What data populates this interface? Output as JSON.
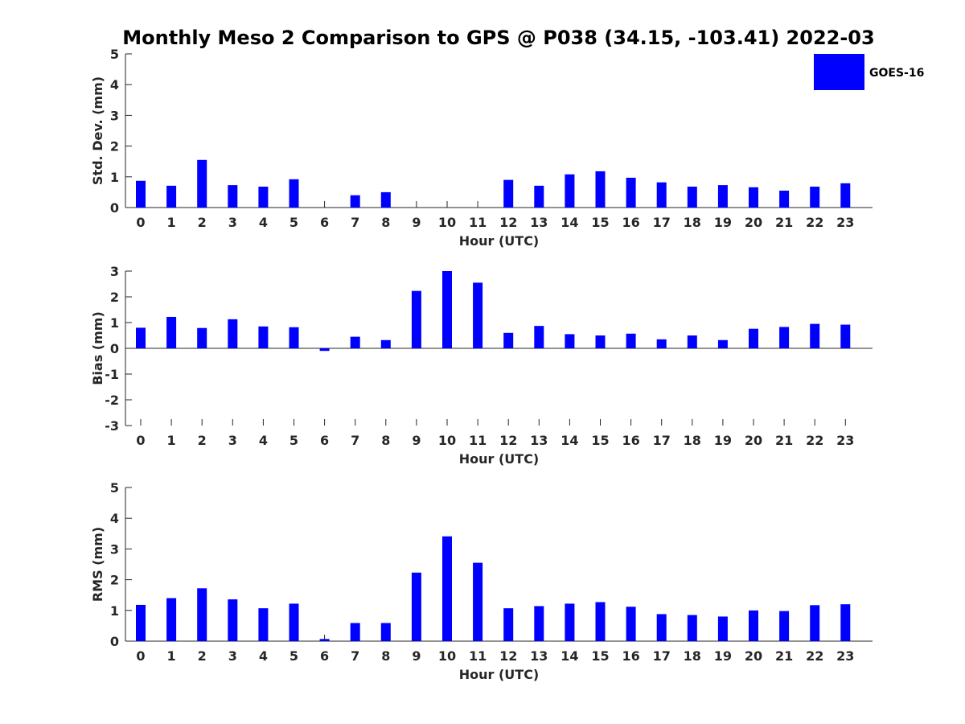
{
  "chart_data": {
    "title": "Monthly Meso 2 Comparison to GPS @ P038 (34.15, -103.41) 2022-03",
    "legend": {
      "label": "GOES-16",
      "color": "#0000ff",
      "placement": "top-right"
    },
    "bar_color": "#0000ff",
    "panels": [
      {
        "type": "bar",
        "xlabel": "Hour (UTC)",
        "ylabel": "Std. Dev. (mm)",
        "ylim": [
          0,
          5
        ],
        "yticks": [
          0,
          1,
          2,
          3,
          4,
          5
        ],
        "categories": [
          "0",
          "1",
          "2",
          "3",
          "4",
          "5",
          "6",
          "7",
          "8",
          "9",
          "10",
          "11",
          "12",
          "13",
          "14",
          "15",
          "16",
          "17",
          "18",
          "19",
          "20",
          "21",
          "22",
          "23"
        ],
        "series": [
          {
            "name": "GOES-16",
            "values": [
              0.87,
              0.71,
              1.55,
              0.73,
              0.68,
              0.92,
              null,
              0.4,
              0.5,
              null,
              null,
              null,
              0.9,
              0.71,
              1.08,
              1.18,
              0.97,
              0.82,
              0.68,
              0.73,
              0.66,
              0.55,
              0.68,
              0.79
            ]
          }
        ]
      },
      {
        "type": "bar",
        "xlabel": "Hour (UTC)",
        "ylabel": "Bias (mm)",
        "ylim": [
          -3,
          3
        ],
        "yticks": [
          -3,
          -2,
          -1,
          0,
          1,
          2,
          3
        ],
        "categories": [
          "0",
          "1",
          "2",
          "3",
          "4",
          "5",
          "6",
          "7",
          "8",
          "9",
          "10",
          "11",
          "12",
          "13",
          "14",
          "15",
          "16",
          "17",
          "18",
          "19",
          "20",
          "21",
          "22",
          "23"
        ],
        "series": [
          {
            "name": "GOES-16",
            "values": [
              0.8,
              1.22,
              0.79,
              1.13,
              0.85,
              0.82,
              -0.1,
              0.45,
              0.32,
              2.23,
              3.0,
              2.55,
              0.6,
              0.87,
              0.55,
              0.5,
              0.57,
              0.35,
              0.5,
              0.32,
              0.76,
              0.83,
              0.95,
              0.92
            ]
          }
        ]
      },
      {
        "type": "bar",
        "xlabel": "Hour (UTC)",
        "ylabel": "RMS (mm)",
        "ylim": [
          0,
          5
        ],
        "yticks": [
          0,
          1,
          2,
          3,
          4,
          5
        ],
        "categories": [
          "0",
          "1",
          "2",
          "3",
          "4",
          "5",
          "6",
          "7",
          "8",
          "9",
          "10",
          "11",
          "12",
          "13",
          "14",
          "15",
          "16",
          "17",
          "18",
          "19",
          "20",
          "21",
          "22",
          "23"
        ],
        "series": [
          {
            "name": "GOES-16",
            "values": [
              1.18,
              1.4,
              1.72,
              1.36,
              1.07,
              1.22,
              0.07,
              0.59,
              0.59,
              2.23,
              3.41,
              2.55,
              1.07,
              1.14,
              1.22,
              1.27,
              1.12,
              0.88,
              0.85,
              0.8,
              1.0,
              0.98,
              1.17,
              1.2
            ]
          }
        ]
      }
    ]
  }
}
